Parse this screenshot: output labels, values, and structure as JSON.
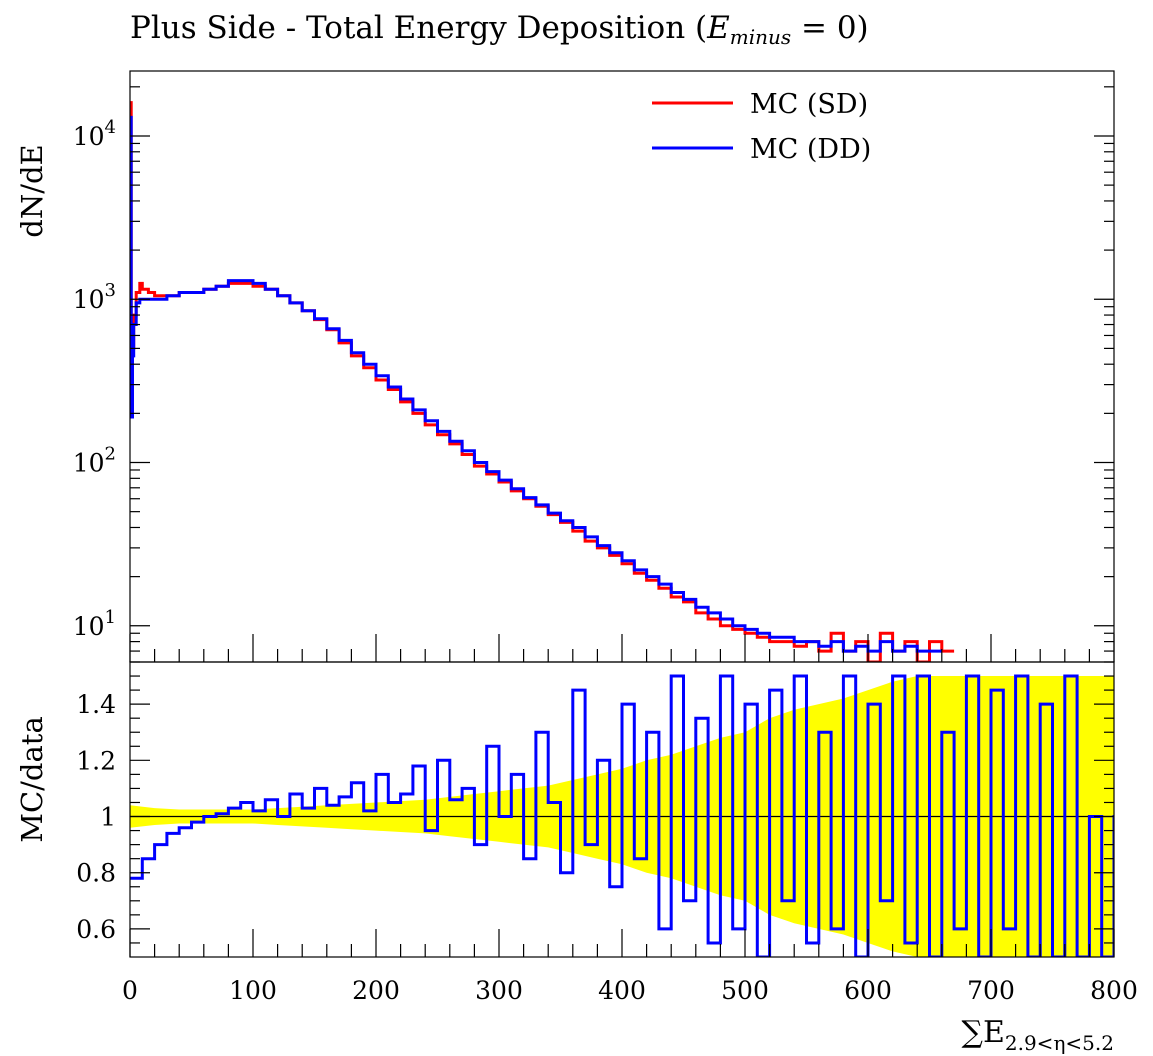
{
  "title": {
    "prefix": "Plus Side - Total Energy Deposition (",
    "var": "E",
    "sub": "minus",
    "suffix": " = 0)"
  },
  "chart_data": [
    {
      "type": "line",
      "panel": "main",
      "ylabel": "dN/dE",
      "yscale": "log",
      "xlim": [
        0,
        800
      ],
      "ylim": [
        6,
        25000
      ],
      "yticks": [
        {
          "value": 10,
          "label": "10",
          "exp": "1"
        },
        {
          "value": 100,
          "label": "10",
          "exp": "2"
        },
        {
          "value": 1000,
          "label": "10",
          "exp": "3"
        },
        {
          "value": 10000,
          "label": "10",
          "exp": "4"
        }
      ],
      "legend": {
        "position": "top-right"
      },
      "series": [
        {
          "name": "MC (SD)",
          "color": "#ff0000",
          "x": [
            0,
            1,
            2,
            3,
            5,
            8,
            10,
            15,
            20,
            30,
            40,
            50,
            60,
            70,
            80,
            90,
            100,
            110,
            120,
            130,
            140,
            150,
            160,
            170,
            180,
            190,
            200,
            210,
            220,
            230,
            240,
            250,
            260,
            270,
            280,
            290,
            300,
            310,
            320,
            330,
            340,
            350,
            360,
            370,
            380,
            390,
            400,
            410,
            420,
            430,
            440,
            450,
            460,
            470,
            480,
            490,
            500,
            510,
            520,
            530,
            540,
            550,
            560,
            570,
            580,
            590,
            600,
            610,
            620,
            630,
            640,
            650,
            660
          ],
          "values": [
            16000,
            200,
            500,
            800,
            1100,
            1250,
            1150,
            1100,
            1050,
            1050,
            1100,
            1100,
            1150,
            1200,
            1250,
            1250,
            1200,
            1150,
            1050,
            950,
            850,
            750,
            650,
            540,
            450,
            380,
            320,
            280,
            235,
            200,
            170,
            148,
            130,
            112,
            95,
            85,
            76,
            67,
            60,
            54,
            48,
            43,
            38,
            33,
            30,
            27,
            24,
            21,
            19,
            17,
            15,
            14,
            12,
            11,
            10,
            9.5,
            9,
            8.5,
            8,
            8,
            7.5,
            8,
            7,
            9,
            7,
            8,
            6,
            9,
            7,
            8,
            6,
            8,
            7
          ]
        },
        {
          "name": "MC (DD)",
          "color": "#0000ff",
          "x": [
            0,
            1,
            2,
            3,
            5,
            8,
            10,
            15,
            20,
            30,
            40,
            50,
            60,
            70,
            80,
            90,
            100,
            110,
            120,
            130,
            140,
            150,
            160,
            170,
            180,
            190,
            200,
            210,
            220,
            230,
            240,
            250,
            260,
            270,
            280,
            290,
            300,
            310,
            320,
            330,
            340,
            350,
            360,
            370,
            380,
            390,
            400,
            410,
            420,
            430,
            440,
            450,
            460,
            470,
            480,
            490,
            500,
            510,
            520,
            530,
            540,
            550,
            560,
            570,
            580,
            590,
            600,
            610,
            620,
            630,
            640,
            650
          ],
          "values": [
            13000,
            190,
            450,
            700,
            950,
            1000,
            1000,
            1000,
            1000,
            1050,
            1100,
            1100,
            1150,
            1200,
            1300,
            1300,
            1250,
            1150,
            1050,
            950,
            850,
            760,
            660,
            560,
            470,
            400,
            340,
            290,
            245,
            210,
            180,
            155,
            135,
            118,
            100,
            88,
            78,
            69,
            61,
            55,
            49,
            44,
            40,
            35,
            31,
            28,
            25,
            22,
            20,
            18,
            16,
            14.5,
            13,
            12,
            11,
            10,
            9.5,
            9,
            8.5,
            8.5,
            8,
            8,
            7.5,
            8,
            7,
            7.5,
            7,
            8,
            7,
            7.5,
            7,
            7
          ]
        }
      ]
    },
    {
      "type": "line",
      "panel": "ratio",
      "xlabel": "∑E",
      "xlabel_sub": "2.9<η<5.2",
      "ylabel": "MC/data",
      "xlim": [
        0,
        800
      ],
      "ylim": [
        0.5,
        1.55
      ],
      "xticks": [
        0,
        100,
        200,
        300,
        400,
        500,
        600,
        700,
        800
      ],
      "yticks": [
        0.6,
        0.8,
        1,
        1.2,
        1.4
      ],
      "band": {
        "color": "#ffff00",
        "x": [
          0,
          20,
          40,
          60,
          80,
          100,
          120,
          140,
          160,
          180,
          200,
          220,
          240,
          260,
          280,
          300,
          320,
          340,
          360,
          380,
          400,
          420,
          440,
          460,
          480,
          500,
          520,
          540,
          560,
          580,
          600,
          620,
          640,
          660,
          680,
          700,
          720,
          740,
          760,
          780,
          800
        ],
        "lower": [
          0.96,
          0.97,
          0.975,
          0.975,
          0.975,
          0.975,
          0.97,
          0.965,
          0.96,
          0.955,
          0.95,
          0.945,
          0.94,
          0.93,
          0.92,
          0.91,
          0.9,
          0.89,
          0.87,
          0.85,
          0.83,
          0.8,
          0.78,
          0.75,
          0.72,
          0.7,
          0.65,
          0.62,
          0.6,
          0.58,
          0.55,
          0.52,
          0.5,
          0.5,
          0.5,
          0.5,
          0.5,
          0.5,
          0.5,
          0.5,
          0.5
        ],
        "upper": [
          1.04,
          1.03,
          1.025,
          1.025,
          1.025,
          1.025,
          1.03,
          1.035,
          1.04,
          1.045,
          1.05,
          1.055,
          1.06,
          1.07,
          1.08,
          1.09,
          1.1,
          1.11,
          1.13,
          1.15,
          1.17,
          1.2,
          1.22,
          1.25,
          1.28,
          1.3,
          1.35,
          1.38,
          1.4,
          1.42,
          1.45,
          1.48,
          1.5,
          1.5,
          1.5,
          1.5,
          1.5,
          1.5,
          1.5,
          1.5,
          1.5
        ]
      },
      "series": [
        {
          "name": "MC (DD)",
          "color": "#0000ff",
          "x": [
            0,
            10,
            20,
            30,
            40,
            50,
            60,
            70,
            80,
            90,
            100,
            110,
            120,
            130,
            140,
            150,
            160,
            170,
            180,
            190,
            200,
            210,
            220,
            230,
            240,
            250,
            260,
            270,
            280,
            290,
            300,
            310,
            320,
            330,
            340,
            350,
            360,
            370,
            380,
            390,
            400,
            410,
            420,
            430,
            440,
            450,
            460,
            470,
            480,
            490,
            500,
            510,
            520,
            530,
            540,
            550,
            560,
            570,
            580,
            590,
            600,
            610,
            620,
            630,
            640,
            650,
            660,
            670,
            680,
            690,
            700,
            710,
            720,
            730,
            740,
            750,
            760,
            770,
            780,
            790,
            800
          ],
          "values": [
            0.78,
            0.85,
            0.9,
            0.94,
            0.96,
            0.98,
            1.0,
            1.01,
            1.03,
            1.05,
            1.02,
            1.06,
            1.0,
            1.08,
            1.03,
            1.1,
            1.04,
            1.07,
            1.12,
            1.02,
            1.15,
            1.05,
            1.08,
            1.18,
            0.95,
            1.2,
            1.06,
            1.1,
            0.9,
            1.25,
            1.0,
            1.15,
            0.85,
            1.3,
            1.05,
            0.8,
            1.45,
            0.9,
            1.2,
            0.75,
            1.4,
            0.85,
            1.3,
            0.6,
            1.5,
            0.7,
            1.35,
            0.55,
            1.5,
            0.6,
            1.4,
            0.5,
            1.45,
            0.7,
            1.5,
            0.55,
            1.3,
            0.6,
            1.5,
            0.5,
            1.4,
            0.7,
            1.5,
            0.55,
            1.5,
            0.5,
            1.3,
            0.6,
            1.5,
            0.5,
            1.45,
            0.6,
            1.5,
            0.5,
            1.4,
            0.5,
            1.5,
            0.5,
            1.0,
            0.5,
            1.0
          ]
        }
      ]
    }
  ]
}
